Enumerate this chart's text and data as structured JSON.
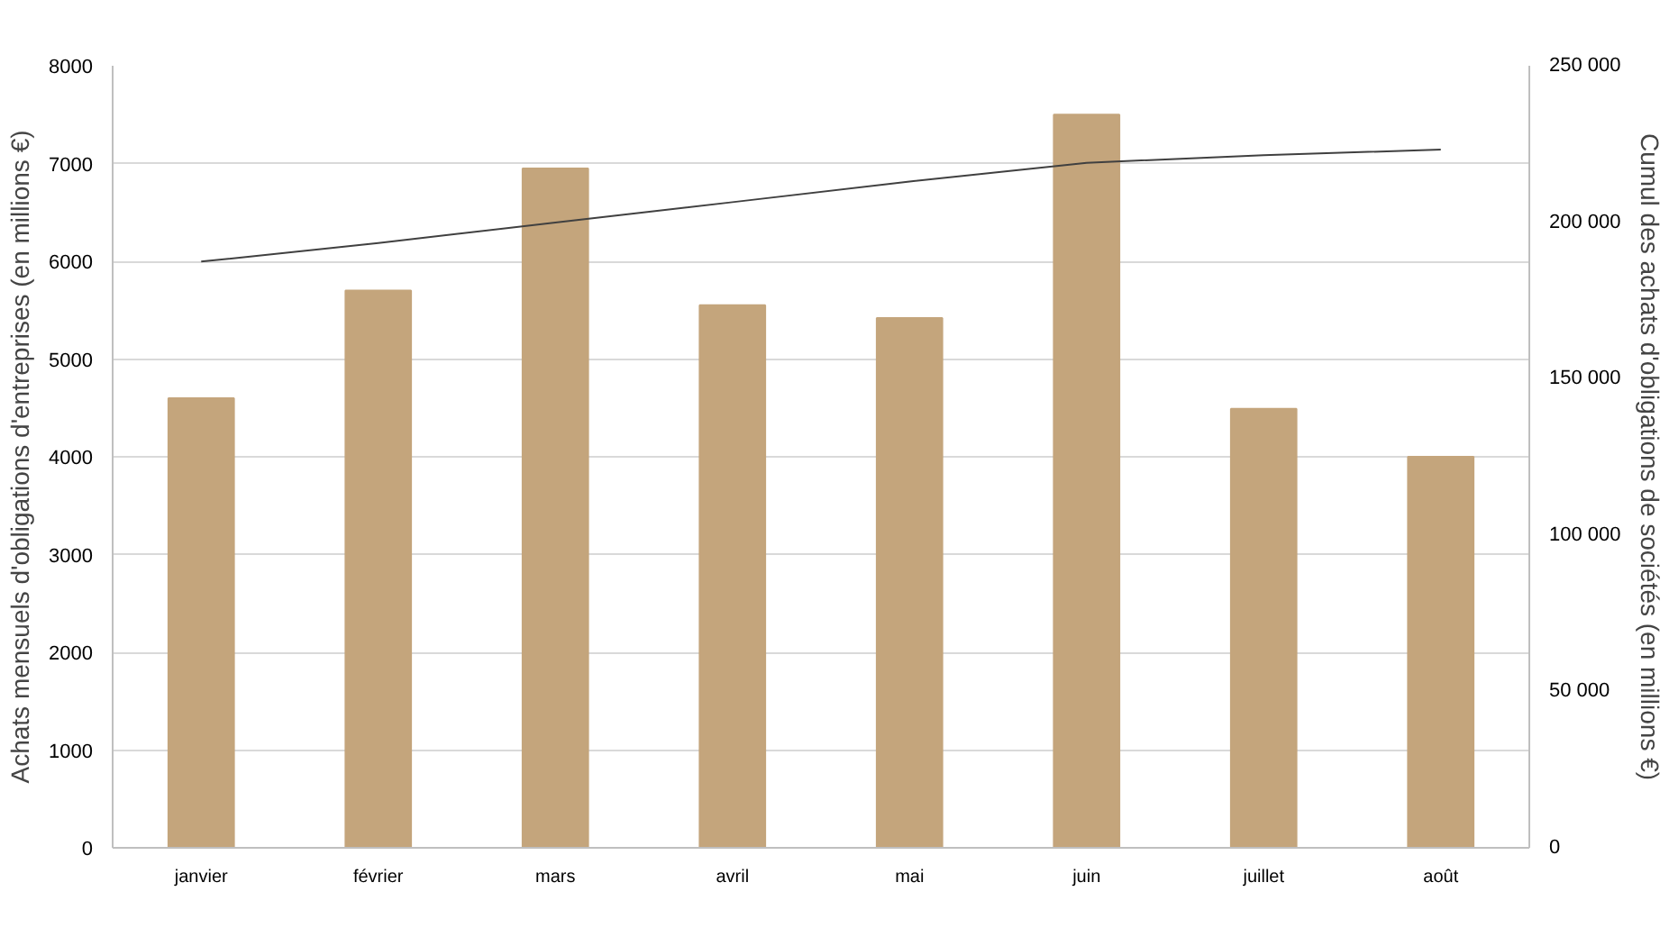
{
  "chart_data": {
    "type": "bar",
    "ylabel": "Achats mensuels d'obligations d'entreprises (en millions €)",
    "y2label": "Cumul des achats d'obligations de sociétés (en millions €)",
    "categories": [
      "janvier",
      "février",
      "mars",
      "avril",
      "mai",
      "juin",
      "juillet",
      "août"
    ],
    "series": [
      {
        "color": "#c4a57c",
        "values": [
          4600,
          5700,
          6950,
          5550,
          5420,
          7500,
          4490,
          4000
        ]
      },
      {
        "type": "line",
        "axis": "y2",
        "color": "#404040",
        "values": [
          187400,
          193300,
          199900,
          206400,
          213000,
          219000,
          221400,
          223200
        ]
      }
    ],
    "ylim": [
      0,
      8000
    ],
    "yticks": [
      0,
      1000,
      2000,
      3000,
      4000,
      5000,
      6000,
      7000,
      8000
    ],
    "y2lim": [
      0,
      250000
    ],
    "y2ticks": [
      {
        "value": 0,
        "label": "0"
      },
      {
        "value": 50000,
        "label": "50 000"
      },
      {
        "value": 100000,
        "label": "100 000"
      },
      {
        "value": 150000,
        "label": "150 000"
      },
      {
        "value": 200000,
        "label": "200 000"
      },
      {
        "value": 250000,
        "label": "250 000"
      }
    ],
    "grid": "y"
  }
}
